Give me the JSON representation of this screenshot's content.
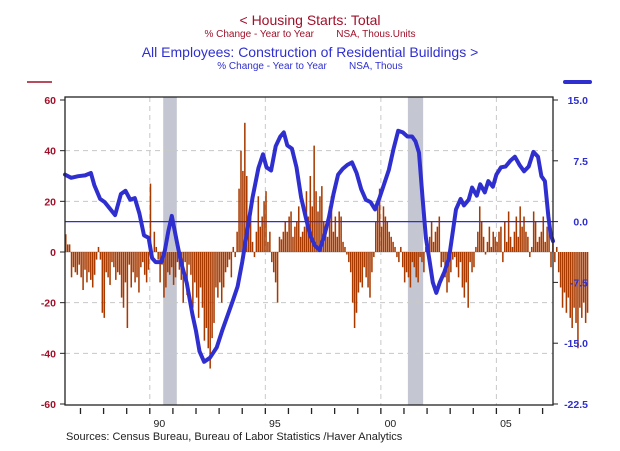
{
  "chart_data": {
    "type": "bar+line",
    "titles": {
      "left_series_title": "<  Housing Starts: Total",
      "left_series_subtitle": "% Change - Year to Year        NSA, Thous.Units",
      "right_series_title": "All Employees: Construction of Residential Buildings  >",
      "right_series_subtitle": "% Change - Year to Year        NSA, Thous"
    },
    "source": "Sources:  Census Bureau, Bureau of Labor Statistics /Haver Analytics",
    "colors": {
      "bars": "#a83a00",
      "line": "#2f2fd0",
      "left_axis": "#a0102a",
      "right_axis": "#2f2fd0",
      "recession": "#c4c6d2"
    },
    "x_range": [
      1986.33,
      2007.45
    ],
    "x_ticks": [
      {
        "year": 1990,
        "label": "90"
      },
      {
        "year": 1995,
        "label": "95"
      },
      {
        "year": 2000,
        "label": "00"
      },
      {
        "year": 2005,
        "label": "05"
      }
    ],
    "left_axis": {
      "ylim": [
        -60,
        60
      ],
      "ticks": [
        "60",
        "40",
        "20",
        "0",
        "-20",
        "-40",
        "-60"
      ],
      "tick_values": [
        60,
        40,
        20,
        0,
        -20,
        -40,
        -60
      ]
    },
    "right_axis": {
      "ylim": [
        -22.5,
        15.0
      ],
      "ticks": [
        "15.0",
        "7.5",
        "0.0",
        "-7.5",
        "-15.0",
        "-22.5"
      ],
      "tick_values": [
        15,
        7.5,
        0,
        -7.5,
        -15,
        -22.5
      ]
    },
    "recessions": [
      [
        1990.58,
        1991.17
      ],
      [
        2001.17,
        2001.83
      ]
    ],
    "grid": true,
    "legend": "top (titles colored by series, swatches above each axis)",
    "series": [
      {
        "name": "Housing Starts: Total (% Change - Year to Year)",
        "axis": "left",
        "type": "bar",
        "start": 1986.33,
        "step_months": 1,
        "values": [
          7,
          3,
          3,
          -10,
          -6,
          -8,
          -9,
          -5,
          -10,
          -15,
          -7,
          -12,
          -8,
          -11,
          -14,
          -9,
          -3,
          2,
          -3,
          -24,
          -26,
          -8,
          -10,
          -13,
          -4,
          -6,
          -11,
          -8,
          -9,
          -18,
          -22,
          -12,
          -30,
          -5,
          -14,
          -8,
          -12,
          -10,
          -16,
          -6,
          -4,
          -9,
          -12,
          -7,
          27,
          -2,
          8,
          2,
          -3,
          -12,
          -5,
          -18,
          -14,
          -8,
          -9,
          -6,
          -13,
          -10,
          -4,
          -7,
          -11,
          -20,
          -4,
          -17,
          -5,
          -9,
          -22,
          -12,
          -18,
          -26,
          -14,
          -22,
          -35,
          -30,
          -38,
          -46,
          -34,
          -28,
          -14,
          -18,
          -12,
          -20,
          -14,
          -8,
          -6,
          -3,
          -10,
          2,
          -2,
          8,
          25,
          40,
          32,
          51,
          30,
          12,
          18,
          4,
          -2,
          8,
          22,
          10,
          14,
          20,
          24,
          4,
          8,
          -4,
          -8,
          -12,
          -20,
          6,
          5,
          8,
          12,
          8,
          14,
          16,
          6,
          10,
          12,
          18,
          6,
          8,
          10,
          24,
          14,
          30,
          18,
          42,
          24,
          16,
          22,
          26,
          12,
          10,
          6,
          18,
          22,
          8,
          14,
          6,
          16,
          14,
          4,
          2,
          -1,
          -4,
          -8,
          -20,
          -30,
          -24,
          -16,
          -12,
          -14,
          -6,
          -10,
          -14,
          -18,
          -8,
          -2,
          12,
          18,
          25,
          10,
          18,
          14,
          12,
          8,
          6,
          4,
          2,
          -2,
          -4,
          2,
          -6,
          -12,
          -8,
          -10,
          -14,
          -4,
          -6,
          -10,
          -12,
          -2,
          -4,
          -8,
          2,
          0,
          6,
          12,
          4,
          8,
          10,
          14,
          -6,
          -4,
          -10,
          -16,
          -12,
          -8,
          -3,
          -2,
          -6,
          -10,
          -4,
          -14,
          -18,
          -12,
          -22,
          -4,
          -8,
          -6,
          2,
          8,
          18,
          12,
          6,
          -1,
          4,
          10,
          2,
          8,
          6,
          4,
          8,
          10,
          -4,
          12,
          4,
          16,
          6,
          2,
          8,
          14,
          6,
          18,
          10,
          14,
          8,
          6,
          -2,
          2,
          16,
          12,
          4,
          6,
          8,
          14,
          4,
          10,
          12,
          -6,
          6,
          -4,
          2,
          -8,
          -14,
          -22,
          -16,
          -24,
          -18,
          -26,
          -30,
          -22,
          -28,
          -38,
          -22,
          -26,
          -20,
          -28,
          -24
        ]
      },
      {
        "name": "All Employees: Construction of Residential Buildings (% Change - Year to Year)",
        "axis": "right",
        "type": "line",
        "points": [
          [
            1986.33,
            5.8
          ],
          [
            1986.6,
            5.4
          ],
          [
            1986.9,
            5.6
          ],
          [
            1987.2,
            5.7
          ],
          [
            1987.45,
            6.0
          ],
          [
            1987.6,
            4.5
          ],
          [
            1987.85,
            2.8
          ],
          [
            1988.05,
            2.4
          ],
          [
            1988.3,
            1.5
          ],
          [
            1988.5,
            0.8
          ],
          [
            1988.75,
            3.4
          ],
          [
            1988.95,
            3.8
          ],
          [
            1989.15,
            2.7
          ],
          [
            1989.35,
            2.9
          ],
          [
            1989.55,
            1.0
          ],
          [
            1989.75,
            -1.7
          ],
          [
            1989.95,
            -2.0
          ],
          [
            1990.1,
            -4.5
          ],
          [
            1990.25,
            -5.0
          ],
          [
            1990.5,
            -5.0
          ],
          [
            1990.65,
            -3.6
          ],
          [
            1990.8,
            -1.2
          ],
          [
            1990.95,
            0.7
          ],
          [
            1991.15,
            -2.2
          ],
          [
            1991.35,
            -5.0
          ],
          [
            1991.6,
            -7.6
          ],
          [
            1991.85,
            -11.5
          ],
          [
            1992.0,
            -13.5
          ],
          [
            1992.15,
            -16.0
          ],
          [
            1992.35,
            -17.3
          ],
          [
            1992.6,
            -16.8
          ],
          [
            1992.9,
            -15.5
          ],
          [
            1993.15,
            -13.3
          ],
          [
            1993.4,
            -11.3
          ],
          [
            1993.6,
            -9.7
          ],
          [
            1993.8,
            -8.0
          ],
          [
            1994.0,
            -5.0
          ],
          [
            1994.2,
            -1.5
          ],
          [
            1994.45,
            3.0
          ],
          [
            1994.7,
            6.6
          ],
          [
            1994.9,
            8.3
          ],
          [
            1995.05,
            6.7
          ],
          [
            1995.25,
            6.3
          ],
          [
            1995.45,
            9.3
          ],
          [
            1995.65,
            10.5
          ],
          [
            1995.8,
            11.0
          ],
          [
            1995.95,
            9.4
          ],
          [
            1996.15,
            9.0
          ],
          [
            1996.35,
            6.7
          ],
          [
            1996.55,
            3.0
          ],
          [
            1996.75,
            0.5
          ],
          [
            1996.95,
            -1.8
          ],
          [
            1997.15,
            -3.0
          ],
          [
            1997.35,
            -3.5
          ],
          [
            1997.55,
            -1.8
          ],
          [
            1997.75,
            0.5
          ],
          [
            1997.95,
            3.4
          ],
          [
            1998.15,
            5.8
          ],
          [
            1998.35,
            6.5
          ],
          [
            1998.55,
            7.0
          ],
          [
            1998.75,
            7.3
          ],
          [
            1998.95,
            6.0
          ],
          [
            1999.15,
            4.0
          ],
          [
            1999.35,
            2.7
          ],
          [
            1999.55,
            2.4
          ],
          [
            1999.75,
            1.5
          ],
          [
            1999.95,
            3.0
          ],
          [
            2000.15,
            4.7
          ],
          [
            2000.35,
            6.4
          ],
          [
            2000.55,
            9.0
          ],
          [
            2000.75,
            11.2
          ],
          [
            2000.95,
            11.0
          ],
          [
            2001.15,
            10.5
          ],
          [
            2001.35,
            10.5
          ],
          [
            2001.5,
            9.9
          ],
          [
            2001.65,
            8.5
          ],
          [
            2001.8,
            3.0
          ],
          [
            2001.95,
            -2.0
          ],
          [
            2002.1,
            -4.7
          ],
          [
            2002.25,
            -7.5
          ],
          [
            2002.4,
            -8.8
          ],
          [
            2002.55,
            -7.5
          ],
          [
            2002.75,
            -6.2
          ],
          [
            2002.95,
            -4.5
          ],
          [
            2003.1,
            -1.5
          ],
          [
            2003.25,
            1.5
          ],
          [
            2003.45,
            2.8
          ],
          [
            2003.6,
            2.0
          ],
          [
            2003.8,
            2.7
          ],
          [
            2003.95,
            4.2
          ],
          [
            2004.15,
            3.2
          ],
          [
            2004.3,
            4.6
          ],
          [
            2004.5,
            3.6
          ],
          [
            2004.65,
            5.0
          ],
          [
            2004.85,
            4.3
          ],
          [
            2005.0,
            5.8
          ],
          [
            2005.2,
            6.7
          ],
          [
            2005.4,
            6.8
          ],
          [
            2005.6,
            7.5
          ],
          [
            2005.8,
            8.0
          ],
          [
            2006.0,
            7.0
          ],
          [
            2006.2,
            6.2
          ],
          [
            2006.4,
            6.8
          ],
          [
            2006.6,
            8.6
          ],
          [
            2006.8,
            8.0
          ],
          [
            2006.95,
            5.6
          ],
          [
            2007.1,
            5.0
          ],
          [
            2007.25,
            0.6
          ],
          [
            2007.35,
            -1.6
          ],
          [
            2007.45,
            -2.4
          ]
        ]
      }
    ]
  }
}
